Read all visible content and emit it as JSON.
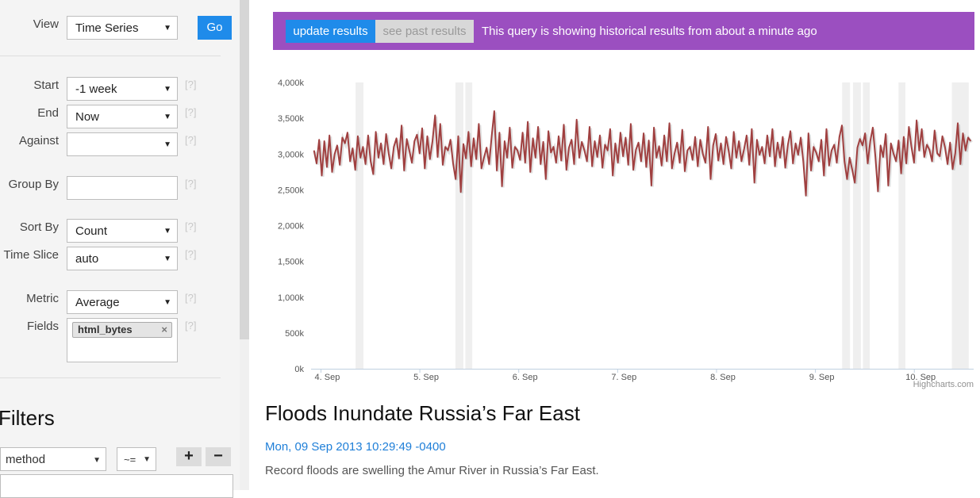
{
  "sidebar": {
    "view": {
      "label": "View",
      "value": "Time Series",
      "go_label": "Go"
    },
    "start": {
      "label": "Start",
      "value": "-1 week",
      "help": "[?]"
    },
    "end": {
      "label": "End",
      "value": "Now",
      "help": "[?]"
    },
    "against": {
      "label": "Against",
      "value": "",
      "help": "[?]"
    },
    "group_by": {
      "label": "Group By",
      "value": "",
      "help": "[?]"
    },
    "sort_by": {
      "label": "Sort By",
      "value": "Count",
      "help": "[?]"
    },
    "time_slice": {
      "label": "Time Slice",
      "value": "auto",
      "help": "[?]"
    },
    "metric": {
      "label": "Metric",
      "value": "Average",
      "help": "[?]"
    },
    "fields": {
      "label": "Fields",
      "chips": [
        "html_bytes"
      ],
      "help": "[?]",
      "remove_glyph": "×"
    },
    "filters": {
      "title": "Filters",
      "column": "method",
      "operator": "~=",
      "add_label": "+",
      "remove_label": "−"
    }
  },
  "banner": {
    "update_label": "update results",
    "past_label": "see past results",
    "message": "This query is showing historical results from about a minute ago",
    "bg_color": "#9b4fc0",
    "update_color": "#1f8bea"
  },
  "chart_data": {
    "type": "line",
    "credit": "Highcharts.com",
    "series_color": "#a04040",
    "yticks": [
      "0k",
      "500k",
      "1,000k",
      "1,500k",
      "2,000k",
      "2,500k",
      "3,000k",
      "3,500k",
      "4,000k"
    ],
    "ylim": [
      0,
      4000
    ],
    "xticks": [
      "4. Sep",
      "5. Sep",
      "6. Sep",
      "7. Sep",
      "8. Sep",
      "9. Sep",
      "10. Sep"
    ],
    "xlim": [
      3.9,
      10.6
    ],
    "missing_bands": [
      [
        4.35,
        4.43
      ],
      [
        5.36,
        5.44
      ],
      [
        5.46,
        5.53
      ],
      [
        9.27,
        9.35
      ],
      [
        9.38,
        9.46
      ],
      [
        9.48,
        9.55
      ],
      [
        9.84,
        9.91
      ],
      [
        10.38,
        10.55
      ]
    ],
    "values": [
      3050,
      2870,
      3200,
      2700,
      3180,
      2820,
      3260,
      2750,
      3000,
      3120,
      2850,
      3230,
      3150,
      3300,
      2900,
      3080,
      2780,
      3250,
      2950,
      3100,
      2860,
      3260,
      2900,
      2720,
      3310,
      2950,
      3150,
      2860,
      3280,
      3010,
      2800,
      3100,
      3220,
      2940,
      3400,
      2770,
      3210,
      3050,
      2880,
      3180,
      3270,
      3010,
      3360,
      2800,
      3250,
      2930,
      3180,
      3540,
      2960,
      3420,
      2850,
      3100,
      3050,
      3200,
      2870,
      2650,
      3250,
      2470,
      3140,
      2940,
      3310,
      2830,
      3220,
      2930,
      3420,
      2800,
      2950,
      3090,
      2860,
      3260,
      3600,
      2770,
      3300,
      2550,
      3180,
      2950,
      3370,
      2810,
      3100,
      3050,
      2920,
      3300,
      2880,
      3450,
      2750,
      3220,
      2950,
      3380,
      2860,
      3170,
      2650,
      3320,
      3020,
      3100,
      2880,
      3250,
      2910,
      3410,
      2780,
      3090,
      3200,
      2860,
      3480,
      2950,
      3170,
      3050,
      2900,
      3380,
      2830,
      3180,
      2960,
      3260,
      2810,
      3130,
      3050,
      3350,
      2700,
      3150,
      2880,
      3300,
      2970,
      3230,
      2850,
      3420,
      2780,
      3060,
      3160,
      2900,
      3290,
      2820,
      3190,
      2560,
      3370,
      2950,
      3110,
      2840,
      3260,
      2900,
      3430,
      2800,
      3010,
      3160,
      2880,
      3340,
      2760,
      3050,
      3100,
      2920,
      3240,
      2830,
      3200,
      3000,
      2880,
      3380,
      2650,
      3120,
      3280,
      2910,
      3150,
      2860,
      3240,
      3050,
      2800,
      3310,
      2950,
      3180,
      2900,
      3070,
      3260,
      2850,
      3350,
      2600,
      3200,
      2990,
      3100,
      2870,
      3260,
      2970,
      3350,
      2830,
      3160,
      2950,
      3240,
      2810,
      3130,
      3320,
      2870,
      3150,
      2990,
      3230,
      2900,
      2420,
      3290,
      2770,
      3100,
      3020,
      2900,
      3200,
      2700,
      3350,
      2840,
      3050,
      3130,
      2880,
      3240,
      3400,
      2900,
      2650,
      2950,
      2780,
      2600,
      3090,
      3210,
      3120,
      3290,
      2870,
      3180,
      3370,
      2960,
      2480,
      3120,
      2960,
      3280,
      2560,
      3150,
      3010,
      2900,
      3190,
      2730,
      3240,
      2870,
      3380,
      3100,
      2880,
      3470,
      3050,
      3350,
      2960,
      3130,
      3060,
      2900,
      3330,
      3010,
      2970,
      3250,
      3100,
      2860,
      3160,
      2790,
      3010,
      3430,
      2860,
      3290,
      3050,
      3230,
      3180
    ]
  },
  "article": {
    "title": "Floods Inundate Russia’s Far East",
    "date": "Mon, 09 Sep 2013 10:29:49 -0400",
    "description": "Record floods are swelling the Amur River in Russia’s Far East."
  }
}
